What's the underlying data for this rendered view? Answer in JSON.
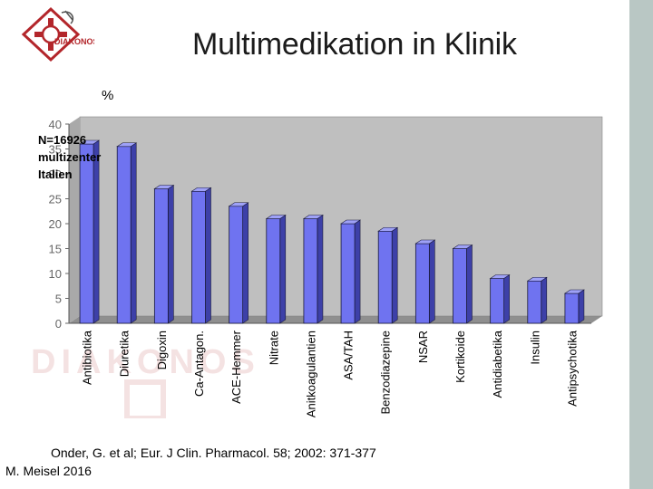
{
  "slide": {
    "title": "Multimedikation in Klinik",
    "unit_label": "%",
    "annotation": [
      "N=16926",
      "multizenter",
      "Italien"
    ],
    "source": "Onder, G. et al; Eur. J Clin. Pharmacol. 58; 2002: 371-377",
    "author": "M. Meisel 2016"
  },
  "logo": {
    "text": "DIAKONOS",
    "icon": "diakonos-logo-icon"
  },
  "colors": {
    "bar_fill": "#6f73f0",
    "bar_edge": "#1a1a3a",
    "plot_back": "#bfbfbf",
    "plot_floor": "#8f8f8f",
    "accent_red": "#b3262b",
    "right_band": "#b9c7c4"
  },
  "chart_data": {
    "type": "bar",
    "style": "3d-columns",
    "categories": [
      "Antibiotika",
      "Diuretika",
      "Digoxin",
      "Ca-Antagon.",
      "ACE-Hemmer",
      "Nitrate",
      "Anitkoagulantien",
      "ASA/TAH",
      "Benzodiazepine",
      "NSAR",
      "Kortikoide",
      "Antidiabetika",
      "Insulin",
      "Antipsychotika"
    ],
    "series": [
      {
        "values": [
          36,
          35.5,
          27,
          26.5,
          23.5,
          21,
          21,
          20,
          18.5,
          16,
          15,
          9,
          8.5,
          6
        ]
      }
    ],
    "ylabel": "%",
    "ylim": [
      0,
      40
    ],
    "yticks": [
      0,
      5,
      10,
      15,
      20,
      25,
      30,
      35,
      40
    ],
    "grid": false,
    "legend": "none"
  }
}
